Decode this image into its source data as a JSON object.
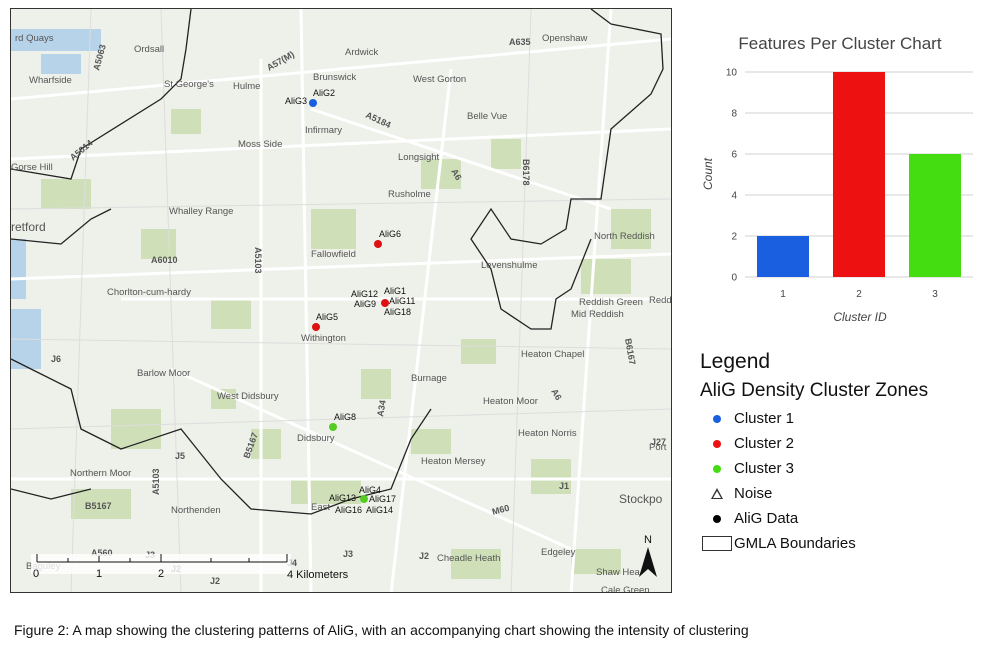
{
  "caption": "Figure 2: A map showing the clustering patterns of AliG, with an accompanying chart showing the intensity of clustering",
  "map": {
    "places": [
      "rd Quays",
      "Ordsall",
      "Wharfside",
      "St George's",
      "Hulme",
      "Brunswick",
      "Ardwick",
      "West Gorton",
      "Openshaw",
      "Infirmary",
      "Belle Vue",
      "Moss Side",
      "Longsight",
      "Gorse Hill",
      "Rusholme",
      "Whalley Range",
      "retford",
      "North Reddish",
      "Fallowfield",
      "Levenshulme",
      "Chorlton-cum-hardy",
      "Reddish Green",
      "Redd",
      "Mid Reddish",
      "Withington",
      "Heaton Chapel",
      "Barlow Moor",
      "Burnage",
      "West Didsbury",
      "Heaton Moor",
      "Heaton Norris",
      "Didsbury",
      "Port",
      "Heaton Mersey",
      "Northern Moor",
      "Stockpo",
      "Northenden",
      "East",
      "Edgeley",
      "Cheadle Heath",
      "Baguley",
      "Shaw Hea",
      "Cale Green"
    ],
    "roads": [
      "A5063",
      "A57(M)",
      "A635",
      "A5184",
      "A5014",
      "A6",
      "B6178",
      "A6010",
      "A5103",
      "B6167",
      "A6",
      "J6",
      "A34",
      "B5167",
      "J5",
      "A5103",
      "B5167",
      "M60",
      "J1",
      "A560",
      "J3",
      "J4",
      "J2",
      "J2",
      "J3",
      "J2",
      "J27"
    ],
    "points": [
      {
        "label": "AliG3",
        "cluster": 1
      },
      {
        "label": "AliG2",
        "cluster": 1
      },
      {
        "label": "AliG6",
        "cluster": 2
      },
      {
        "label": "AliG12",
        "cluster": 2
      },
      {
        "label": "AliG1",
        "cluster": 2
      },
      {
        "label": "AliG9",
        "cluster": 2
      },
      {
        "label": "AliG11",
        "cluster": 2
      },
      {
        "label": "AliG18",
        "cluster": 2
      },
      {
        "label": "AliG5",
        "cluster": 2
      },
      {
        "label": "AliG8",
        "cluster": 3
      },
      {
        "label": "AliG4",
        "cluster": 3
      },
      {
        "label": "AliG13",
        "cluster": 3
      },
      {
        "label": "AliG17",
        "cluster": 3
      },
      {
        "label": "AliG16",
        "cluster": 3
      },
      {
        "label": "AliG14",
        "cluster": 3
      }
    ],
    "scale": {
      "ticks": [
        "0",
        "1",
        "2"
      ],
      "label": "4 Kilometers"
    },
    "north": "N"
  },
  "colors": {
    "cluster1": "#1a5fe0",
    "cluster2": "#ee1111",
    "cluster3": "#44dd11",
    "cluster2_point": "#dd1111",
    "cluster3_point": "#55cc22"
  },
  "chart_data": {
    "type": "bar",
    "title": "Features Per Cluster Chart",
    "xlabel": "Cluster ID",
    "ylabel": "Count",
    "categories": [
      "1",
      "2",
      "3"
    ],
    "values": [
      2,
      10,
      6
    ],
    "ylim": [
      0,
      10
    ],
    "yticks": [
      "0",
      "2",
      "4",
      "6",
      "8",
      "10"
    ],
    "grid": true
  },
  "legend": {
    "title": "Legend",
    "subtitle": "AliG Density Cluster Zones",
    "items": [
      {
        "label": "Cluster 1",
        "symbol": "dot",
        "color": "#1a5fe0"
      },
      {
        "label": "Cluster 2",
        "symbol": "dot",
        "color": "#ee1111"
      },
      {
        "label": "Cluster 3",
        "symbol": "dot",
        "color": "#44dd11"
      },
      {
        "label": "Noise",
        "symbol": "triangle"
      },
      {
        "label": "AliG Data",
        "symbol": "dot",
        "color": "#000000"
      },
      {
        "label": "GMLA Boundaries",
        "symbol": "box"
      }
    ]
  }
}
